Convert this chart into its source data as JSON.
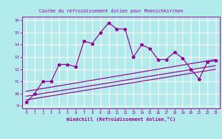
{
  "title": "Courbe du refroidissement éolien pour Moenichkirchen",
  "xlabel": "Windchill (Refroidissement éolien,°C)",
  "bg_color": "#b2ebeb",
  "grid_color": "#ffffff",
  "line_color": "#990099",
  "xlim": [
    -0.5,
    23.5
  ],
  "ylim": [
    8.8,
    16.3
  ],
  "xticks": [
    0,
    1,
    2,
    3,
    4,
    5,
    6,
    7,
    8,
    9,
    10,
    11,
    12,
    13,
    14,
    15,
    16,
    17,
    18,
    19,
    20,
    21,
    22,
    23
  ],
  "yticks": [
    9,
    10,
    11,
    12,
    13,
    14,
    15,
    16
  ],
  "main_x": [
    0,
    1,
    2,
    3,
    4,
    5,
    6,
    7,
    8,
    9,
    10,
    11,
    12,
    13,
    14,
    15,
    16,
    17,
    18,
    19,
    20,
    21,
    22,
    23
  ],
  "main_y": [
    9.3,
    10.0,
    11.0,
    11.0,
    12.4,
    12.4,
    12.2,
    14.3,
    14.1,
    15.0,
    15.8,
    15.3,
    15.3,
    13.0,
    14.0,
    13.7,
    12.8,
    12.8,
    13.4,
    12.9,
    12.0,
    11.2,
    12.6,
    12.7
  ],
  "trend1_x": [
    0,
    23
  ],
  "trend1_y": [
    9.5,
    12.0
  ],
  "trend2_x": [
    0,
    23
  ],
  "trend2_y": [
    9.8,
    12.3
  ],
  "trend3_x": [
    0,
    23
  ],
  "trend3_y": [
    10.2,
    12.8
  ]
}
